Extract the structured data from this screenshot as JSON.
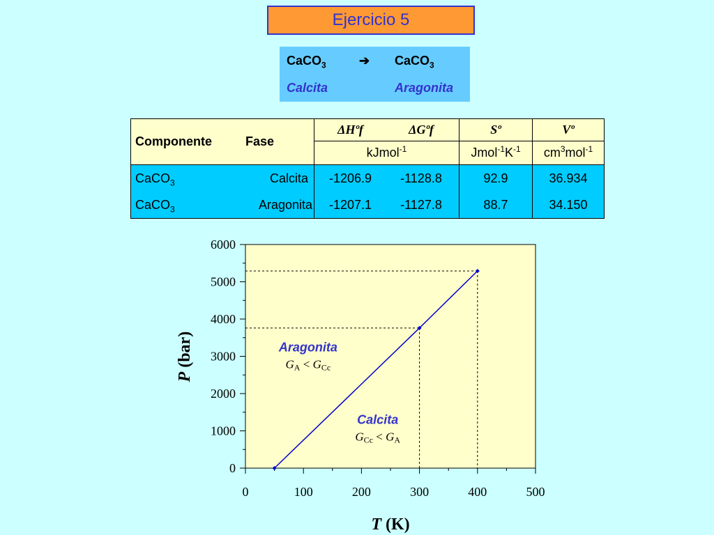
{
  "title": "Ejercicio 5",
  "reaction": {
    "reactant": "CaCO",
    "reactant_sub": "3",
    "arrow": "➔",
    "product": "CaCO",
    "product_sub": "3",
    "reactant_phase": "Calcita",
    "product_phase": "Aragonita"
  },
  "table": {
    "col_componente": "Componente",
    "col_fase": "Fase",
    "col_dh": "ΔHºf",
    "col_dg": "ΔGºf",
    "col_s": "Sº",
    "col_v": "Vº",
    "unit_energy": "kJmol",
    "unit_energy_sup": "-1",
    "unit_entropy_a": "Jmol",
    "unit_entropy_sup1": "-1",
    "unit_entropy_b": "K",
    "unit_entropy_sup2": "-1",
    "unit_volume_a": "cm",
    "unit_volume_sup1": "3",
    "unit_volume_b": "mol",
    "unit_volume_sup2": "-1",
    "rows": [
      {
        "comp": "CaCO",
        "comp_sub": "3",
        "fase": "Calcita",
        "dh": "-1206.9",
        "dg": "-1128.8",
        "s": "92.9",
        "v": "36.934"
      },
      {
        "comp": "CaCO",
        "comp_sub": "3",
        "fase": "Aragonita",
        "dh": "-1207.1",
        "dg": "-1127.8",
        "s": "88.7",
        "v": "34.150"
      }
    ]
  },
  "chart_data": {
    "type": "line",
    "xlabel_var": "T",
    "xlabel_unit": "(K)",
    "ylabel_var": "P",
    "ylabel_unit": "(bar)",
    "xlim": [
      0,
      500
    ],
    "ylim": [
      0,
      6000
    ],
    "xticks": [
      "0",
      "100",
      "200",
      "300",
      "400",
      "500"
    ],
    "yticks": [
      "0",
      "1000",
      "2000",
      "3000",
      "4000",
      "5000",
      "6000"
    ],
    "series": [
      {
        "x": [
          50,
          300,
          400
        ],
        "y": [
          0,
          3760,
          5290
        ],
        "color": "#0000cc"
      }
    ],
    "guides": [
      {
        "x": 300,
        "y": 3760
      },
      {
        "x": 400,
        "y": 5290
      }
    ],
    "annotations": [
      {
        "label": "Aragonita",
        "relation": [
          "G",
          "A",
          " < ",
          "G",
          "Cc"
        ],
        "x": 108,
        "y": 3130
      },
      {
        "label": "Calcita",
        "relation": [
          "G",
          "Cc",
          " < ",
          "G",
          "A"
        ],
        "x": 228,
        "y": 1190
      }
    ],
    "plot_bg": "#ffffcc",
    "line_color": "#0000cc",
    "label_color": "#3333cc"
  }
}
